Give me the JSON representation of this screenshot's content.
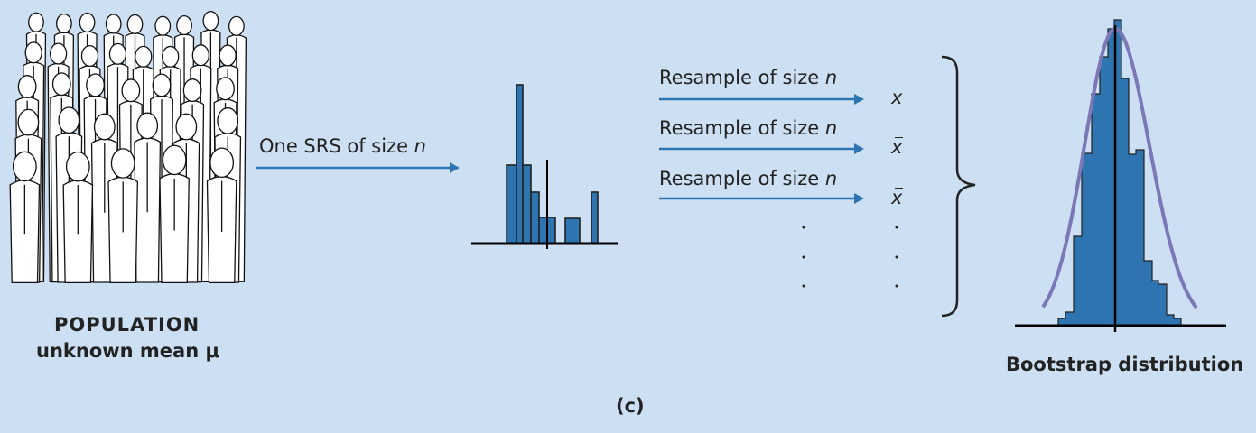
{
  "population": {
    "line1": "POPULATION",
    "line2": "unknown mean μ"
  },
  "srs_label": {
    "text": "One SRS of size ",
    "n": "n"
  },
  "resample_labels": [
    {
      "text": "Resample of size ",
      "n": "n"
    },
    {
      "text": "Resample of size ",
      "n": "n"
    },
    {
      "text": "Resample of size ",
      "n": "n"
    }
  ],
  "xbar_symbol": "x",
  "bootstrap_label": "Bootstrap distribution",
  "caption": "(c)",
  "colors": {
    "background": "#cde0f3",
    "bars": "#2e74b0",
    "arrow": "#2e74b0",
    "curve": "#7b78b8"
  },
  "icons": {
    "population": "crowd-of-people-illustration"
  }
}
